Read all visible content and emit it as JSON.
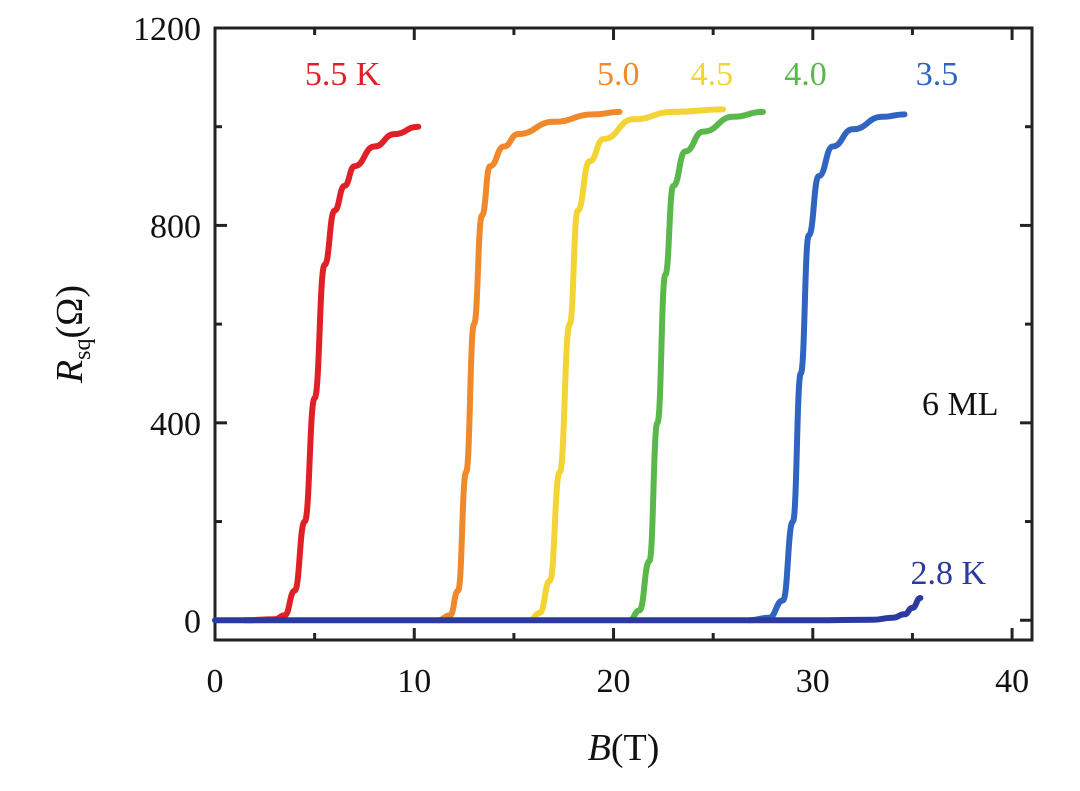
{
  "chart_data": {
    "type": "line",
    "xlabel": {
      "symbol": "B",
      "unit": "(T)"
    },
    "ylabel": {
      "symbol": "R",
      "subscript": "sq",
      "unit": "(Ω)"
    },
    "xlim": [
      0,
      41
    ],
    "ylim": [
      -40,
      1200
    ],
    "xticks": [
      0,
      10,
      20,
      30,
      40
    ],
    "xtick_labels": [
      "0",
      "10",
      "20",
      "30",
      "40"
    ],
    "yticks": [
      0,
      400,
      800,
      1200
    ],
    "ytick_labels": [
      "0",
      "400",
      "800",
      "1200"
    ],
    "annotation": "6 ML",
    "grid": false,
    "series": [
      {
        "name": "5.5 K",
        "color": "#e01f26",
        "x": [
          1.5,
          3.0,
          3.5,
          4.0,
          4.5,
          5.0,
          5.5,
          6.0,
          6.5,
          7.0,
          8.0,
          9.0,
          10.2
        ],
        "values": [
          0,
          2,
          10,
          60,
          200,
          450,
          720,
          830,
          880,
          920,
          960,
          985,
          1000
        ]
      },
      {
        "name": "5.0",
        "color": "#f0892b",
        "x": [
          11.2,
          11.8,
          12.2,
          12.6,
          13.0,
          13.4,
          13.8,
          14.5,
          15.2,
          17.0,
          19.0,
          20.3
        ],
        "values": [
          0,
          10,
          60,
          300,
          600,
          820,
          920,
          960,
          985,
          1010,
          1025,
          1030
        ]
      },
      {
        "name": "4.5",
        "color": "#f3d434",
        "x": [
          15.8,
          16.3,
          16.8,
          17.3,
          17.8,
          18.2,
          18.8,
          19.5,
          21.0,
          23.0,
          25.5
        ],
        "values": [
          0,
          15,
          80,
          300,
          600,
          830,
          930,
          975,
          1015,
          1030,
          1035
        ]
      },
      {
        "name": "4.0",
        "color": "#5ab74a",
        "x": [
          20.8,
          21.3,
          21.8,
          22.2,
          22.6,
          23.0,
          23.6,
          24.5,
          26.0,
          27.5
        ],
        "values": [
          0,
          20,
          120,
          400,
          700,
          880,
          950,
          990,
          1020,
          1030
        ]
      },
      {
        "name": "3.5",
        "color": "#2f64c0",
        "x": [
          26.8,
          27.8,
          28.5,
          29.0,
          29.4,
          29.8,
          30.3,
          31.0,
          32.0,
          33.5,
          34.6
        ],
        "values": [
          0,
          5,
          40,
          200,
          500,
          780,
          900,
          960,
          995,
          1020,
          1025
        ]
      },
      {
        "name": "2.8 K",
        "color": "#2b3aa0",
        "x": [
          0.0,
          10.0,
          20.0,
          30.0,
          33.0,
          34.0,
          34.6,
          35.0,
          35.4
        ],
        "values": [
          0,
          0,
          0,
          0,
          1,
          5,
          12,
          25,
          45
        ]
      }
    ]
  }
}
